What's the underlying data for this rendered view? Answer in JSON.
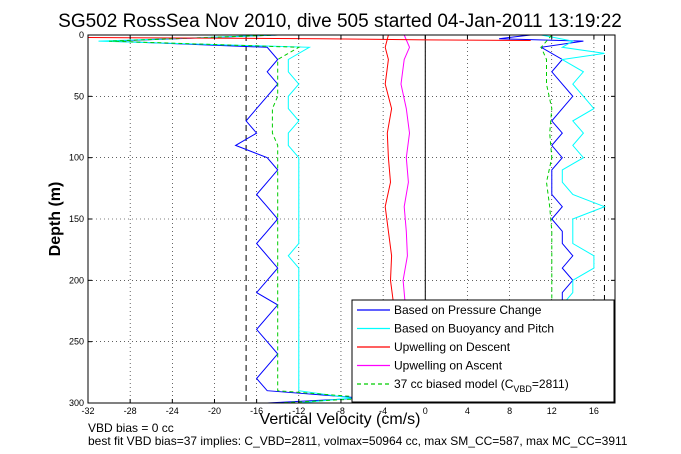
{
  "chart_data": {
    "type": "line",
    "title": "SG502 RossSea Nov 2010, dive 505 started 04-Jan-2011 13:19:22",
    "xlabel": "Vertical Velocity (cm/s)",
    "ylabel": "Depth (m)",
    "xlim": [
      -32,
      18
    ],
    "ylim": [
      0,
      300
    ],
    "y_reversed": true,
    "grid": true,
    "legend_position": "bottom-right",
    "xticks": [
      -32,
      -28,
      -24,
      -20,
      -16,
      -12,
      -8,
      -4,
      0,
      4,
      8,
      12,
      16
    ],
    "yticks": [
      0,
      50,
      100,
      150,
      200,
      250,
      300
    ],
    "reference_lines": [
      {
        "axis": "x",
        "value": -17,
        "style": "dashed",
        "color": "#000000"
      },
      {
        "axis": "x",
        "value": 0,
        "style": "solid",
        "color": "#000000"
      },
      {
        "axis": "x",
        "value": 17,
        "style": "dashed",
        "color": "#000000"
      }
    ],
    "series": [
      {
        "name": "Based on Pressure Change",
        "color": "#0000ff",
        "style": "solid",
        "depth": [
          0,
          5,
          10,
          20,
          30,
          40,
          50,
          60,
          70,
          80,
          90,
          100,
          110,
          120,
          130,
          140,
          150,
          160,
          170,
          180,
          190,
          200,
          210,
          220,
          230,
          240,
          250,
          260,
          270,
          280,
          290,
          296,
          300
        ],
        "values": [
          -14,
          -30,
          -15,
          -14,
          -15,
          -14,
          -15,
          -16,
          -17,
          -16,
          -18,
          -15,
          -14,
          -15,
          -16,
          -15,
          -14,
          -15,
          -16,
          -15,
          -14,
          -15,
          -16,
          -14,
          -15,
          -16,
          -15,
          -14,
          -15,
          -16,
          -15,
          -6,
          -15
        ]
      },
      {
        "name": "Based on Buoyancy and Pitch",
        "color": "#00ffff",
        "style": "solid",
        "depth": [
          0,
          5,
          10,
          20,
          30,
          40,
          50,
          60,
          70,
          80,
          90,
          100,
          110,
          120,
          130,
          140,
          150,
          160,
          170,
          180,
          190,
          200,
          210,
          220,
          230,
          240,
          250,
          260,
          270,
          280,
          290,
          296,
          300
        ],
        "values": [
          -14,
          -31,
          -11,
          -13,
          -13,
          -12,
          -13,
          -13,
          -12,
          -13,
          -13,
          -12,
          -12,
          -12,
          -12,
          -12,
          -12,
          -12,
          -12,
          -13,
          -12,
          -12,
          -12,
          -12,
          -12,
          -12,
          -12,
          -12,
          -12,
          -12,
          -12,
          -7,
          -12
        ]
      },
      {
        "name": "Upwelling on Descent",
        "color": "#ff0000",
        "style": "solid",
        "depth": [
          0,
          10,
          20,
          40,
          60,
          80,
          100,
          120,
          140,
          160,
          180,
          200,
          220
        ],
        "values": [
          -3.5,
          -3.8,
          -3.5,
          -3.8,
          -3.2,
          -3.6,
          -3.5,
          -3.3,
          -3.8,
          -3.5,
          -3.2,
          -3.3,
          -3.0
        ]
      },
      {
        "name": "Upwelling on Ascent",
        "color": "#ff00ff",
        "style": "solid",
        "depth": [
          0,
          10,
          20,
          40,
          60,
          80,
          100,
          120,
          140,
          160,
          180,
          200,
          220
        ],
        "values": [
          -2.0,
          -1.5,
          -2.0,
          -2.3,
          -1.8,
          -1.5,
          -1.8,
          -1.6,
          -2.0,
          -1.8,
          -1.7,
          -2.1,
          -1.9
        ]
      },
      {
        "name": "37 cc biased model",
        "legend_label": "37 cc biased model (C",
        "legend_subscript": "VBD",
        "legend_suffix": "=2811)",
        "color": "#00cc00",
        "style": "dashed",
        "depth": [
          0,
          5,
          10,
          20,
          30,
          40,
          50,
          60,
          70,
          80,
          90,
          100,
          110,
          120,
          130,
          140,
          150,
          160,
          170,
          180,
          190,
          200,
          210,
          220,
          230,
          240,
          250,
          260,
          270,
          280,
          290,
          296,
          300
        ],
        "values": [
          -14,
          -30,
          -12,
          -14,
          -14,
          -14,
          -14,
          -14.5,
          -14.5,
          -14.5,
          -14,
          -14,
          -14,
          -14,
          -14,
          -14,
          -14,
          -14,
          -14,
          -14,
          -14,
          -14,
          -14,
          -14,
          -14,
          -14,
          -14,
          -14,
          -14,
          -14,
          -14,
          -5,
          -14
        ]
      },
      {
        "name": "Based on Pressure Change (ascent)",
        "color": "#0000ff",
        "style": "solid",
        "legend": false,
        "depth": [
          0,
          3,
          5,
          10,
          20,
          30,
          40,
          50,
          60,
          70,
          80,
          90,
          100,
          110,
          120,
          130,
          140,
          150,
          160,
          170,
          180,
          190,
          200,
          210,
          220
        ],
        "values": [
          10,
          7,
          15,
          11,
          13,
          12,
          13,
          14,
          13,
          12,
          13,
          12,
          13,
          12,
          12,
          12,
          13,
          12,
          13,
          13,
          14,
          13,
          14,
          13,
          13
        ]
      },
      {
        "name": "Based on Buoyancy and Pitch (ascent)",
        "color": "#00ffff",
        "style": "solid",
        "legend": false,
        "depth": [
          0,
          5,
          10,
          15,
          20,
          30,
          40,
          50,
          60,
          70,
          80,
          90,
          100,
          110,
          120,
          130,
          140,
          150,
          160,
          170,
          180,
          190,
          200,
          210,
          220
        ],
        "values": [
          11,
          14,
          13,
          17,
          13,
          15,
          14,
          15,
          16,
          14,
          15,
          14,
          15,
          13,
          13,
          14,
          17,
          14,
          14,
          14,
          16,
          16,
          14,
          14,
          13
        ]
      },
      {
        "name": "37 cc biased model (ascent)",
        "color": "#00cc00",
        "style": "dashed",
        "legend": false,
        "depth": [
          0,
          10,
          20,
          40,
          60,
          80,
          100,
          120,
          140,
          160,
          180,
          200,
          220
        ],
        "values": [
          12,
          11,
          11.5,
          11.5,
          12,
          11.8,
          12,
          11.5,
          11.8,
          12,
          12,
          12,
          12
        ]
      },
      {
        "name": "Surface red spike",
        "color": "#ff0000",
        "style": "solid",
        "legend": false,
        "depth": [
          2,
          3,
          4,
          4.5
        ],
        "values": [
          -32,
          -10,
          0,
          10
        ]
      }
    ]
  },
  "footer": {
    "line1": "VBD bias = 0 cc",
    "line2": "best fit VBD bias=37 implies: C_VBD=2811, volmax=50964 cc, max SM_CC=587, max MC_CC=3911"
  },
  "colors": {
    "axis": "#000000",
    "grid": "#000000",
    "background": "#ffffff"
  }
}
